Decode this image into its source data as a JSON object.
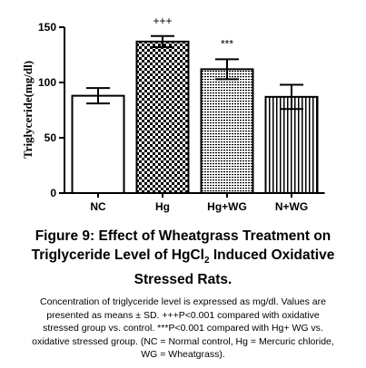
{
  "chart_data": {
    "type": "bar",
    "ylabel": "Triglyceride(mg/dl)",
    "ylim": [
      0,
      150
    ],
    "yticks": [
      "0",
      "50",
      "100",
      "150"
    ],
    "categories": [
      "NC",
      "Hg",
      "Hg+WG",
      "N+WG"
    ],
    "values": [
      88,
      137,
      112,
      87
    ],
    "errors": [
      7,
      5,
      9,
      11
    ],
    "significance": [
      "",
      "+++",
      "***",
      ""
    ],
    "patterns": [
      "solid-white",
      "checker",
      "dots",
      "vertical-stripes"
    ],
    "grid": false
  },
  "figure": {
    "title_line1": "Figure 9:  Effect of Wheatgrass Treatment on",
    "title_line2_pre": "Triglyceride Level of HgCl",
    "title_line2_sub": "2",
    "title_line2_post": " Induced Oxidative",
    "title_line3": "Stressed Rats.",
    "desc_line1": "Concentration of triglyceride level is expressed as mg/dl. Values are",
    "desc_line2": "presented as means ± SD. +++P<0.001 compared with oxidative",
    "desc_line3": "stressed group vs. control. ***P<0.001 compared with Hg+ WG vs.",
    "desc_line4": "oxidative stressed group. (NC = Normal control, Hg = Mercuric chloride,",
    "desc_line5": "WG = Wheatgrass)."
  }
}
